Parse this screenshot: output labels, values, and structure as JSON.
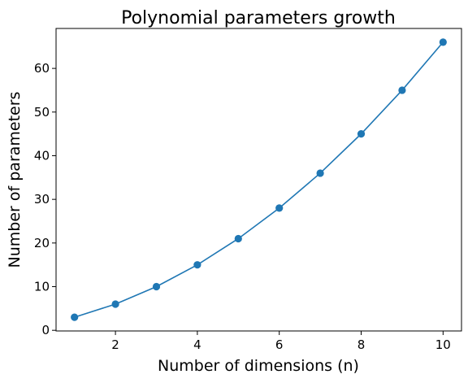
{
  "chart_data": {
    "type": "line",
    "title": "Polynomial parameters growth",
    "xlabel": "Number of dimensions (n)",
    "ylabel": "Number of parameters",
    "x": [
      1,
      2,
      3,
      4,
      5,
      6,
      7,
      8,
      9,
      10
    ],
    "series": [
      {
        "values": [
          3,
          6,
          10,
          15,
          21,
          28,
          36,
          45,
          55,
          66
        ],
        "color": "#1f77b4",
        "marker": "circle"
      }
    ],
    "xlim": [
      0.55,
      10.45
    ],
    "ylim": [
      -0.15,
      69.15
    ],
    "xticks": [
      2,
      4,
      6,
      8,
      10
    ],
    "yticks": [
      0,
      10,
      20,
      30,
      40,
      50,
      60
    ],
    "grid": false,
    "legend": "none"
  }
}
